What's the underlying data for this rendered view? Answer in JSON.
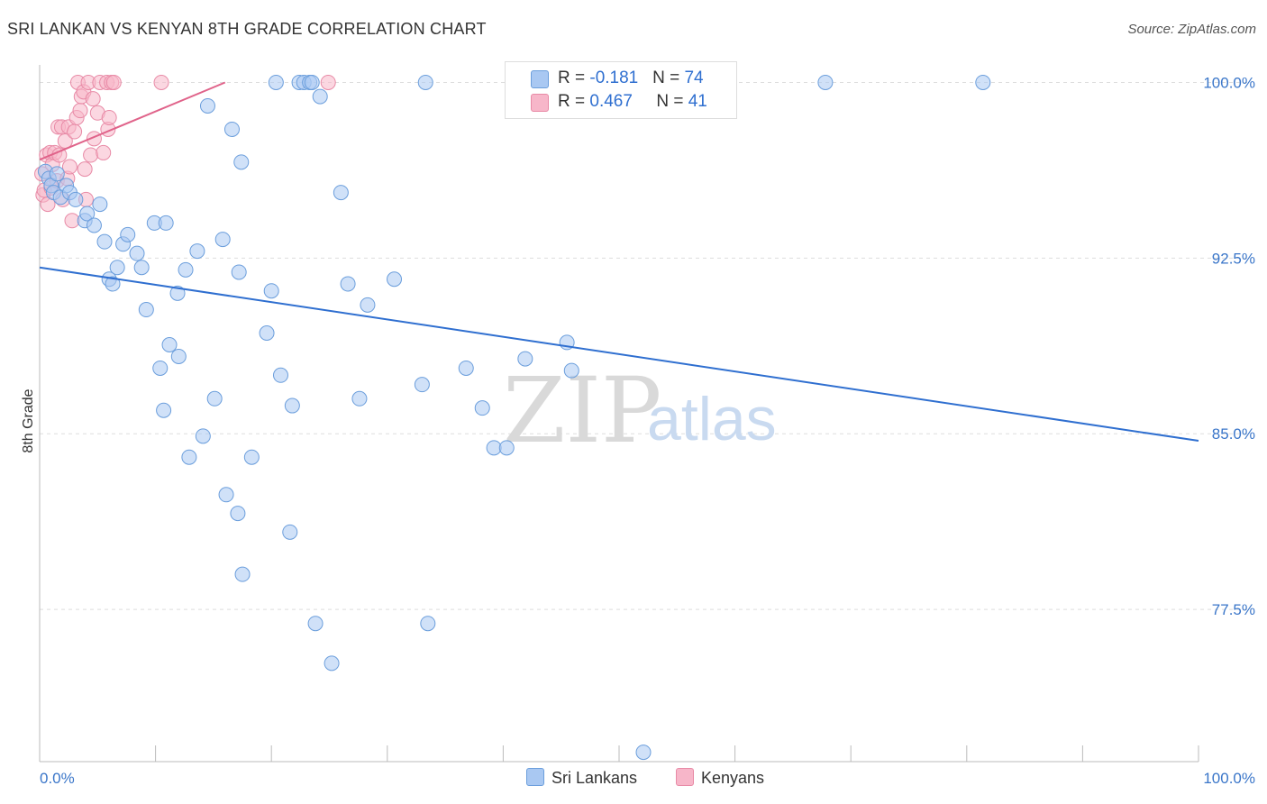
{
  "title": "SRI LANKAN VS KENYAN 8TH GRADE CORRELATION CHART",
  "source": "Source: ZipAtlas.com",
  "watermark": {
    "zip": "ZIP",
    "atlas": "atlas"
  },
  "colors": {
    "sri_lankans_fill": "#a9c8f2",
    "sri_lankans_stroke": "#6b9edc",
    "sri_lankans_line": "#2f6fd0",
    "kenyans_fill": "#f7b6c9",
    "kenyans_stroke": "#e88aa6",
    "kenyans_line": "#e0638a",
    "value_text": "#2f6fd0"
  },
  "legend": {
    "sri_lankans": {
      "r_label": "R = ",
      "r_value": "-0.181",
      "n_label": "N = ",
      "n_value": "74"
    },
    "kenyans": {
      "r_label": "R = ",
      "r_value": "0.467",
      "n_label": "N = ",
      "n_value": "41"
    }
  },
  "bottom_legend": {
    "sri_lankans": "Sri Lankans",
    "kenyans": "Kenyans"
  },
  "chart_data": {
    "type": "scatter",
    "title": "SRI LANKAN VS KENYAN 8TH GRADE CORRELATION CHART",
    "xlabel": "",
    "ylabel": "8th Grade",
    "xlim": [
      0,
      100
    ],
    "ylim": [
      71.0,
      100.75
    ],
    "x_tick_labels": [
      "0.0%",
      "100.0%"
    ],
    "y_ticks": [
      {
        "value": 100.0,
        "label": "100.0%"
      },
      {
        "value": 92.5,
        "label": "92.5%"
      },
      {
        "value": 85.0,
        "label": "85.0%"
      },
      {
        "value": 77.5,
        "label": "77.5%"
      }
    ],
    "series": [
      {
        "name": "Sri Lankans",
        "r": -0.181,
        "n": 74,
        "trend": {
          "x": [
            0,
            100
          ],
          "y": [
            92.1,
            84.7
          ]
        },
        "points": [
          [
            0.5,
            96.2
          ],
          [
            0.8,
            95.9
          ],
          [
            1.0,
            95.6
          ],
          [
            1.2,
            95.3
          ],
          [
            1.5,
            96.1
          ],
          [
            1.8,
            95.1
          ],
          [
            2.3,
            95.6
          ],
          [
            2.6,
            95.3
          ],
          [
            3.1,
            95.0
          ],
          [
            3.9,
            94.1
          ],
          [
            4.1,
            94.4
          ],
          [
            4.7,
            93.9
          ],
          [
            5.2,
            94.8
          ],
          [
            5.6,
            93.2
          ],
          [
            6.0,
            91.6
          ],
          [
            6.3,
            91.4
          ],
          [
            6.7,
            92.1
          ],
          [
            7.2,
            93.1
          ],
          [
            7.6,
            93.5
          ],
          [
            8.4,
            92.7
          ],
          [
            8.8,
            92.1
          ],
          [
            9.2,
            90.3
          ],
          [
            9.9,
            94.0
          ],
          [
            10.4,
            87.8
          ],
          [
            10.7,
            86.0
          ],
          [
            10.9,
            94.0
          ],
          [
            11.2,
            88.8
          ],
          [
            11.9,
            91.0
          ],
          [
            12.0,
            88.3
          ],
          [
            12.6,
            92.0
          ],
          [
            12.9,
            84.0
          ],
          [
            13.6,
            92.8
          ],
          [
            14.1,
            84.9
          ],
          [
            14.5,
            99.0
          ],
          [
            15.1,
            86.5
          ],
          [
            15.8,
            93.3
          ],
          [
            16.1,
            82.4
          ],
          [
            16.6,
            98.0
          ],
          [
            17.1,
            81.6
          ],
          [
            17.4,
            96.6
          ],
          [
            17.2,
            91.9
          ],
          [
            17.5,
            79.0
          ],
          [
            18.3,
            84.0
          ],
          [
            19.6,
            89.3
          ],
          [
            20.0,
            91.1
          ],
          [
            20.4,
            100.0
          ],
          [
            20.8,
            87.5
          ],
          [
            21.6,
            80.8
          ],
          [
            21.8,
            86.2
          ],
          [
            22.4,
            100.0
          ],
          [
            22.8,
            100.0
          ],
          [
            23.3,
            100.0
          ],
          [
            23.5,
            100.0
          ],
          [
            23.8,
            76.9
          ],
          [
            24.2,
            99.4
          ],
          [
            25.2,
            75.2
          ],
          [
            26.0,
            95.3
          ],
          [
            26.6,
            91.4
          ],
          [
            27.6,
            86.5
          ],
          [
            28.3,
            90.5
          ],
          [
            30.6,
            91.6
          ],
          [
            33.0,
            87.1
          ],
          [
            33.3,
            100.0
          ],
          [
            33.5,
            76.9
          ],
          [
            36.8,
            87.8
          ],
          [
            38.2,
            86.1
          ],
          [
            39.2,
            84.4
          ],
          [
            40.3,
            84.4
          ],
          [
            41.9,
            88.2
          ],
          [
            45.5,
            88.9
          ],
          [
            45.9,
            87.7
          ],
          [
            52.1,
            71.4
          ],
          [
            67.8,
            100.0
          ],
          [
            81.4,
            100.0
          ]
        ]
      },
      {
        "name": "Kenyans",
        "r": 0.467,
        "n": 41,
        "trend": {
          "x": [
            0,
            16.0
          ],
          "y": [
            96.7,
            100.0
          ]
        },
        "points": [
          [
            0.2,
            96.1
          ],
          [
            0.3,
            95.2
          ],
          [
            0.4,
            95.4
          ],
          [
            0.6,
            96.9
          ],
          [
            0.7,
            94.8
          ],
          [
            0.9,
            97.0
          ],
          [
            1.0,
            95.5
          ],
          [
            1.1,
            96.5
          ],
          [
            1.3,
            97.0
          ],
          [
            1.5,
            95.8
          ],
          [
            1.6,
            98.1
          ],
          [
            1.7,
            96.9
          ],
          [
            1.9,
            98.1
          ],
          [
            2.0,
            95.0
          ],
          [
            2.2,
            97.5
          ],
          [
            2.4,
            95.9
          ],
          [
            2.5,
            98.1
          ],
          [
            2.6,
            96.4
          ],
          [
            2.8,
            94.1
          ],
          [
            3.0,
            97.9
          ],
          [
            3.2,
            98.5
          ],
          [
            3.3,
            100.0
          ],
          [
            3.5,
            98.8
          ],
          [
            3.6,
            99.4
          ],
          [
            3.8,
            99.6
          ],
          [
            3.9,
            96.3
          ],
          [
            4.0,
            95.0
          ],
          [
            4.2,
            100.0
          ],
          [
            4.4,
            96.9
          ],
          [
            4.6,
            99.3
          ],
          [
            4.7,
            97.6
          ],
          [
            5.0,
            98.7
          ],
          [
            5.2,
            100.0
          ],
          [
            5.5,
            97.0
          ],
          [
            5.8,
            100.0
          ],
          [
            5.9,
            98.0
          ],
          [
            6.0,
            98.5
          ],
          [
            6.2,
            100.0
          ],
          [
            6.4,
            100.0
          ],
          [
            10.5,
            100.0
          ],
          [
            24.9,
            100.0
          ]
        ]
      }
    ]
  }
}
